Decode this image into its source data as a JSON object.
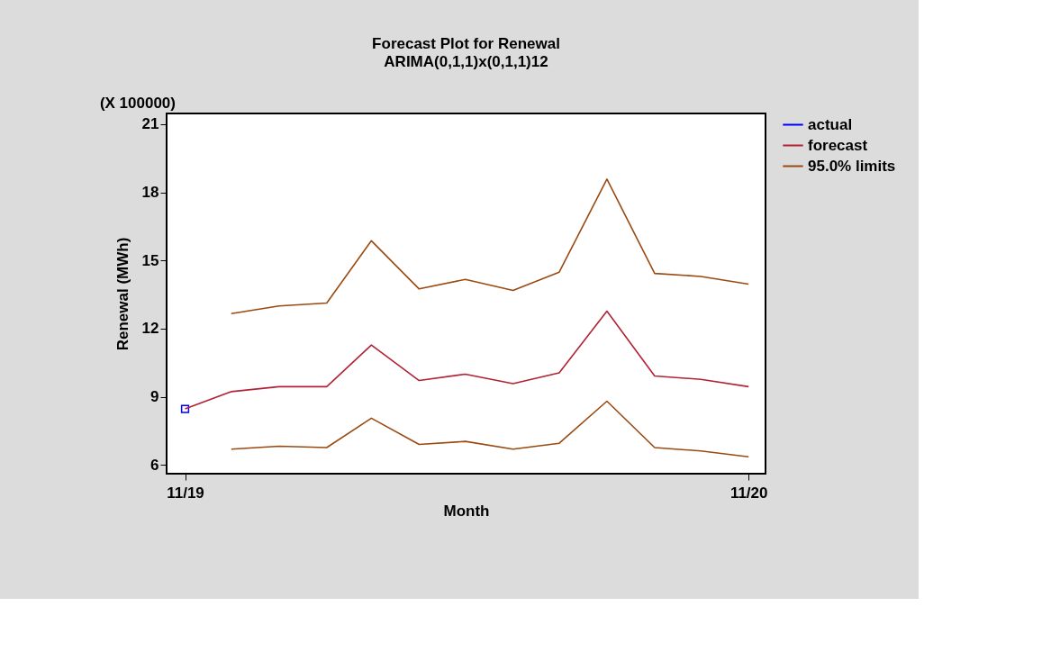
{
  "chart_data": {
    "type": "line",
    "title": "Forecast Plot for Renewal",
    "subtitle": "ARIMA(0,1,1)x(0,1,1)12",
    "xlabel": "Month",
    "ylabel": "Renewal (MWh)",
    "annotations": [
      "(X 100000)"
    ],
    "x": [
      "2019-11",
      "2019-12",
      "2020-01",
      "2020-02",
      "2020-03",
      "2020-04",
      "2020-05",
      "2020-06",
      "2020-07",
      "2020-08",
      "2020-09",
      "2020-10",
      "2020-11"
    ],
    "series": [
      {
        "name": "actual",
        "color": "#0000ff",
        "marker": "square",
        "values": [
          8.47,
          null,
          null,
          null,
          null,
          null,
          null,
          null,
          null,
          null,
          null,
          null,
          null
        ]
      },
      {
        "name": "forecast",
        "color": "#b22234",
        "values": [
          8.47,
          9.23,
          9.45,
          9.45,
          11.28,
          9.72,
          10.0,
          9.58,
          10.06,
          12.77,
          9.92,
          9.77,
          9.45
        ]
      },
      {
        "name": "95.0% limits",
        "color": "#9a4a10",
        "values": [
          null,
          12.66,
          13.0,
          13.13,
          15.87,
          13.75,
          14.17,
          13.68,
          14.49,
          18.58,
          14.43,
          14.3,
          13.96
        ]
      },
      {
        "color": "#9a4a10",
        "values": [
          null,
          6.7,
          6.83,
          6.77,
          8.06,
          6.91,
          7.04,
          6.7,
          6.96,
          8.81,
          6.77,
          6.62,
          6.36
        ]
      }
    ],
    "xlim": [
      "2019-10-20",
      "2020-11-12"
    ],
    "xticks": [
      {
        "value": "2019-11",
        "label": "11/19"
      },
      {
        "value": "2020-11",
        "label": "11/20"
      }
    ],
    "ylim": [
      5.62,
      21.47
    ],
    "yticks": [
      6,
      9,
      12,
      15,
      18,
      21
    ],
    "grid": false,
    "legend": "top right",
    "line_style": "solid"
  }
}
